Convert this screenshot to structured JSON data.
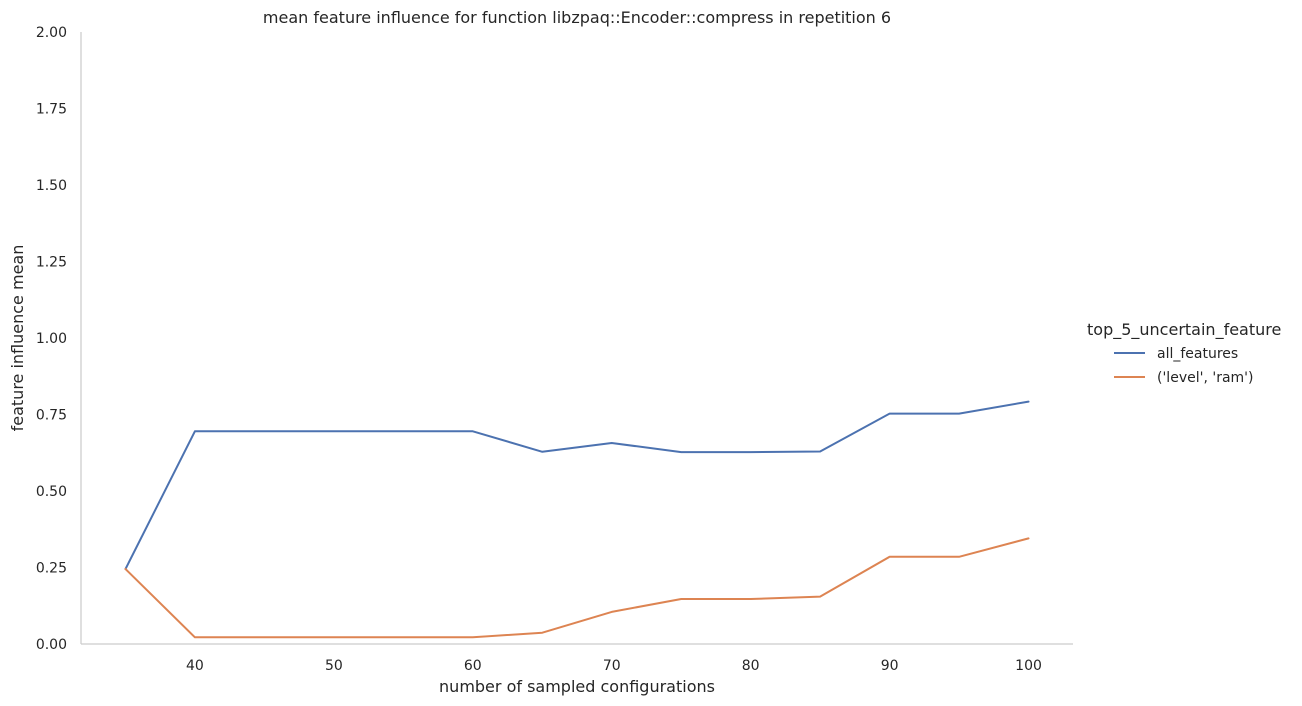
{
  "chart_data": {
    "type": "line",
    "title": "mean feature influence for function libzpaq::Encoder::compress in repetition 6",
    "xlabel": "number of sampled configurations",
    "ylabel": "feature influence mean",
    "xlim": [
      31.8,
      103.2
    ],
    "ylim": [
      0,
      2
    ],
    "xticks": [
      40,
      50,
      60,
      70,
      80,
      90,
      100
    ],
    "yticks": [
      "0.00",
      "0.25",
      "0.50",
      "0.75",
      "1.00",
      "1.25",
      "1.50",
      "1.75",
      "2.00"
    ],
    "grid": false,
    "legend": {
      "title": "top_5_uncertain_feature",
      "placement": "right"
    },
    "x": [
      35,
      40,
      45,
      50,
      55,
      60,
      65,
      70,
      75,
      80,
      85,
      90,
      95,
      100
    ],
    "series": [
      {
        "name": "all_features",
        "color": "#4c72b0",
        "values": [
          0.245,
          0.695,
          0.695,
          0.695,
          0.695,
          0.695,
          0.628,
          0.657,
          0.627,
          0.627,
          0.629,
          0.753,
          0.753,
          0.792
        ]
      },
      {
        "name": "('level', 'ram')",
        "color": "#dd8452",
        "values": [
          0.245,
          0.022,
          0.022,
          0.022,
          0.022,
          0.022,
          0.037,
          0.105,
          0.147,
          0.147,
          0.155,
          0.285,
          0.285,
          0.345
        ]
      }
    ]
  }
}
